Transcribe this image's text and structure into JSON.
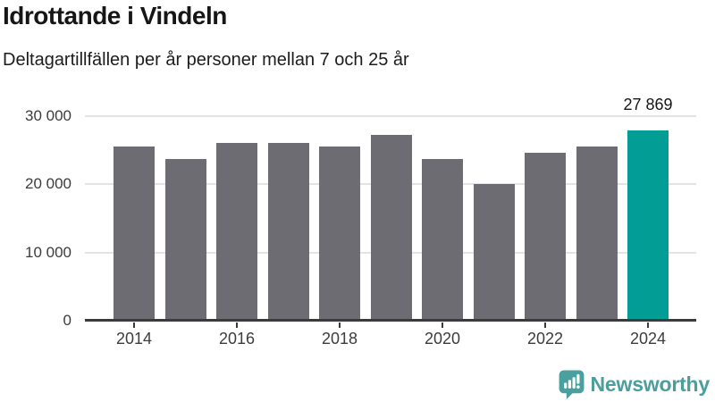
{
  "header": {
    "title": "Idrottande i Vindeln",
    "subtitle": "Deltagartillfällen per år personer mellan 7 och 25 år"
  },
  "chart_data": {
    "type": "bar",
    "title": "Idrottande i Vindeln",
    "subtitle": "Deltagartillfällen per år personer mellan 7 och 25 år",
    "categories": [
      "2014",
      "2015",
      "2016",
      "2017",
      "2018",
      "2019",
      "2020",
      "2021",
      "2022",
      "2023",
      "2024"
    ],
    "values": [
      25500,
      23700,
      26100,
      26100,
      25500,
      27300,
      23700,
      20000,
      24600,
      25500,
      27869
    ],
    "highlight": {
      "category": "2024",
      "value": 27869,
      "label": "27 869",
      "color": "#029E96"
    },
    "bar_color": "#6D6C72",
    "ylim": [
      0,
      30000
    ],
    "ytick_values": [
      0,
      10000,
      20000,
      30000
    ],
    "ytick_labels": [
      "0",
      "10 000",
      "20 000",
      "30 000"
    ],
    "xtick_labels": [
      "2014",
      "2016",
      "2018",
      "2020",
      "2022",
      "2024"
    ],
    "grid": "horizontal",
    "gridline_color": "#E3E3E3",
    "axis_color": "#3B3B3B",
    "legend_position": "none"
  },
  "branding": {
    "name": "Newsworthy",
    "color": "#4A9E9D",
    "icon": "newsworthy-speech-bubble-chart-icon",
    "icon_color": "#4AA09E"
  }
}
